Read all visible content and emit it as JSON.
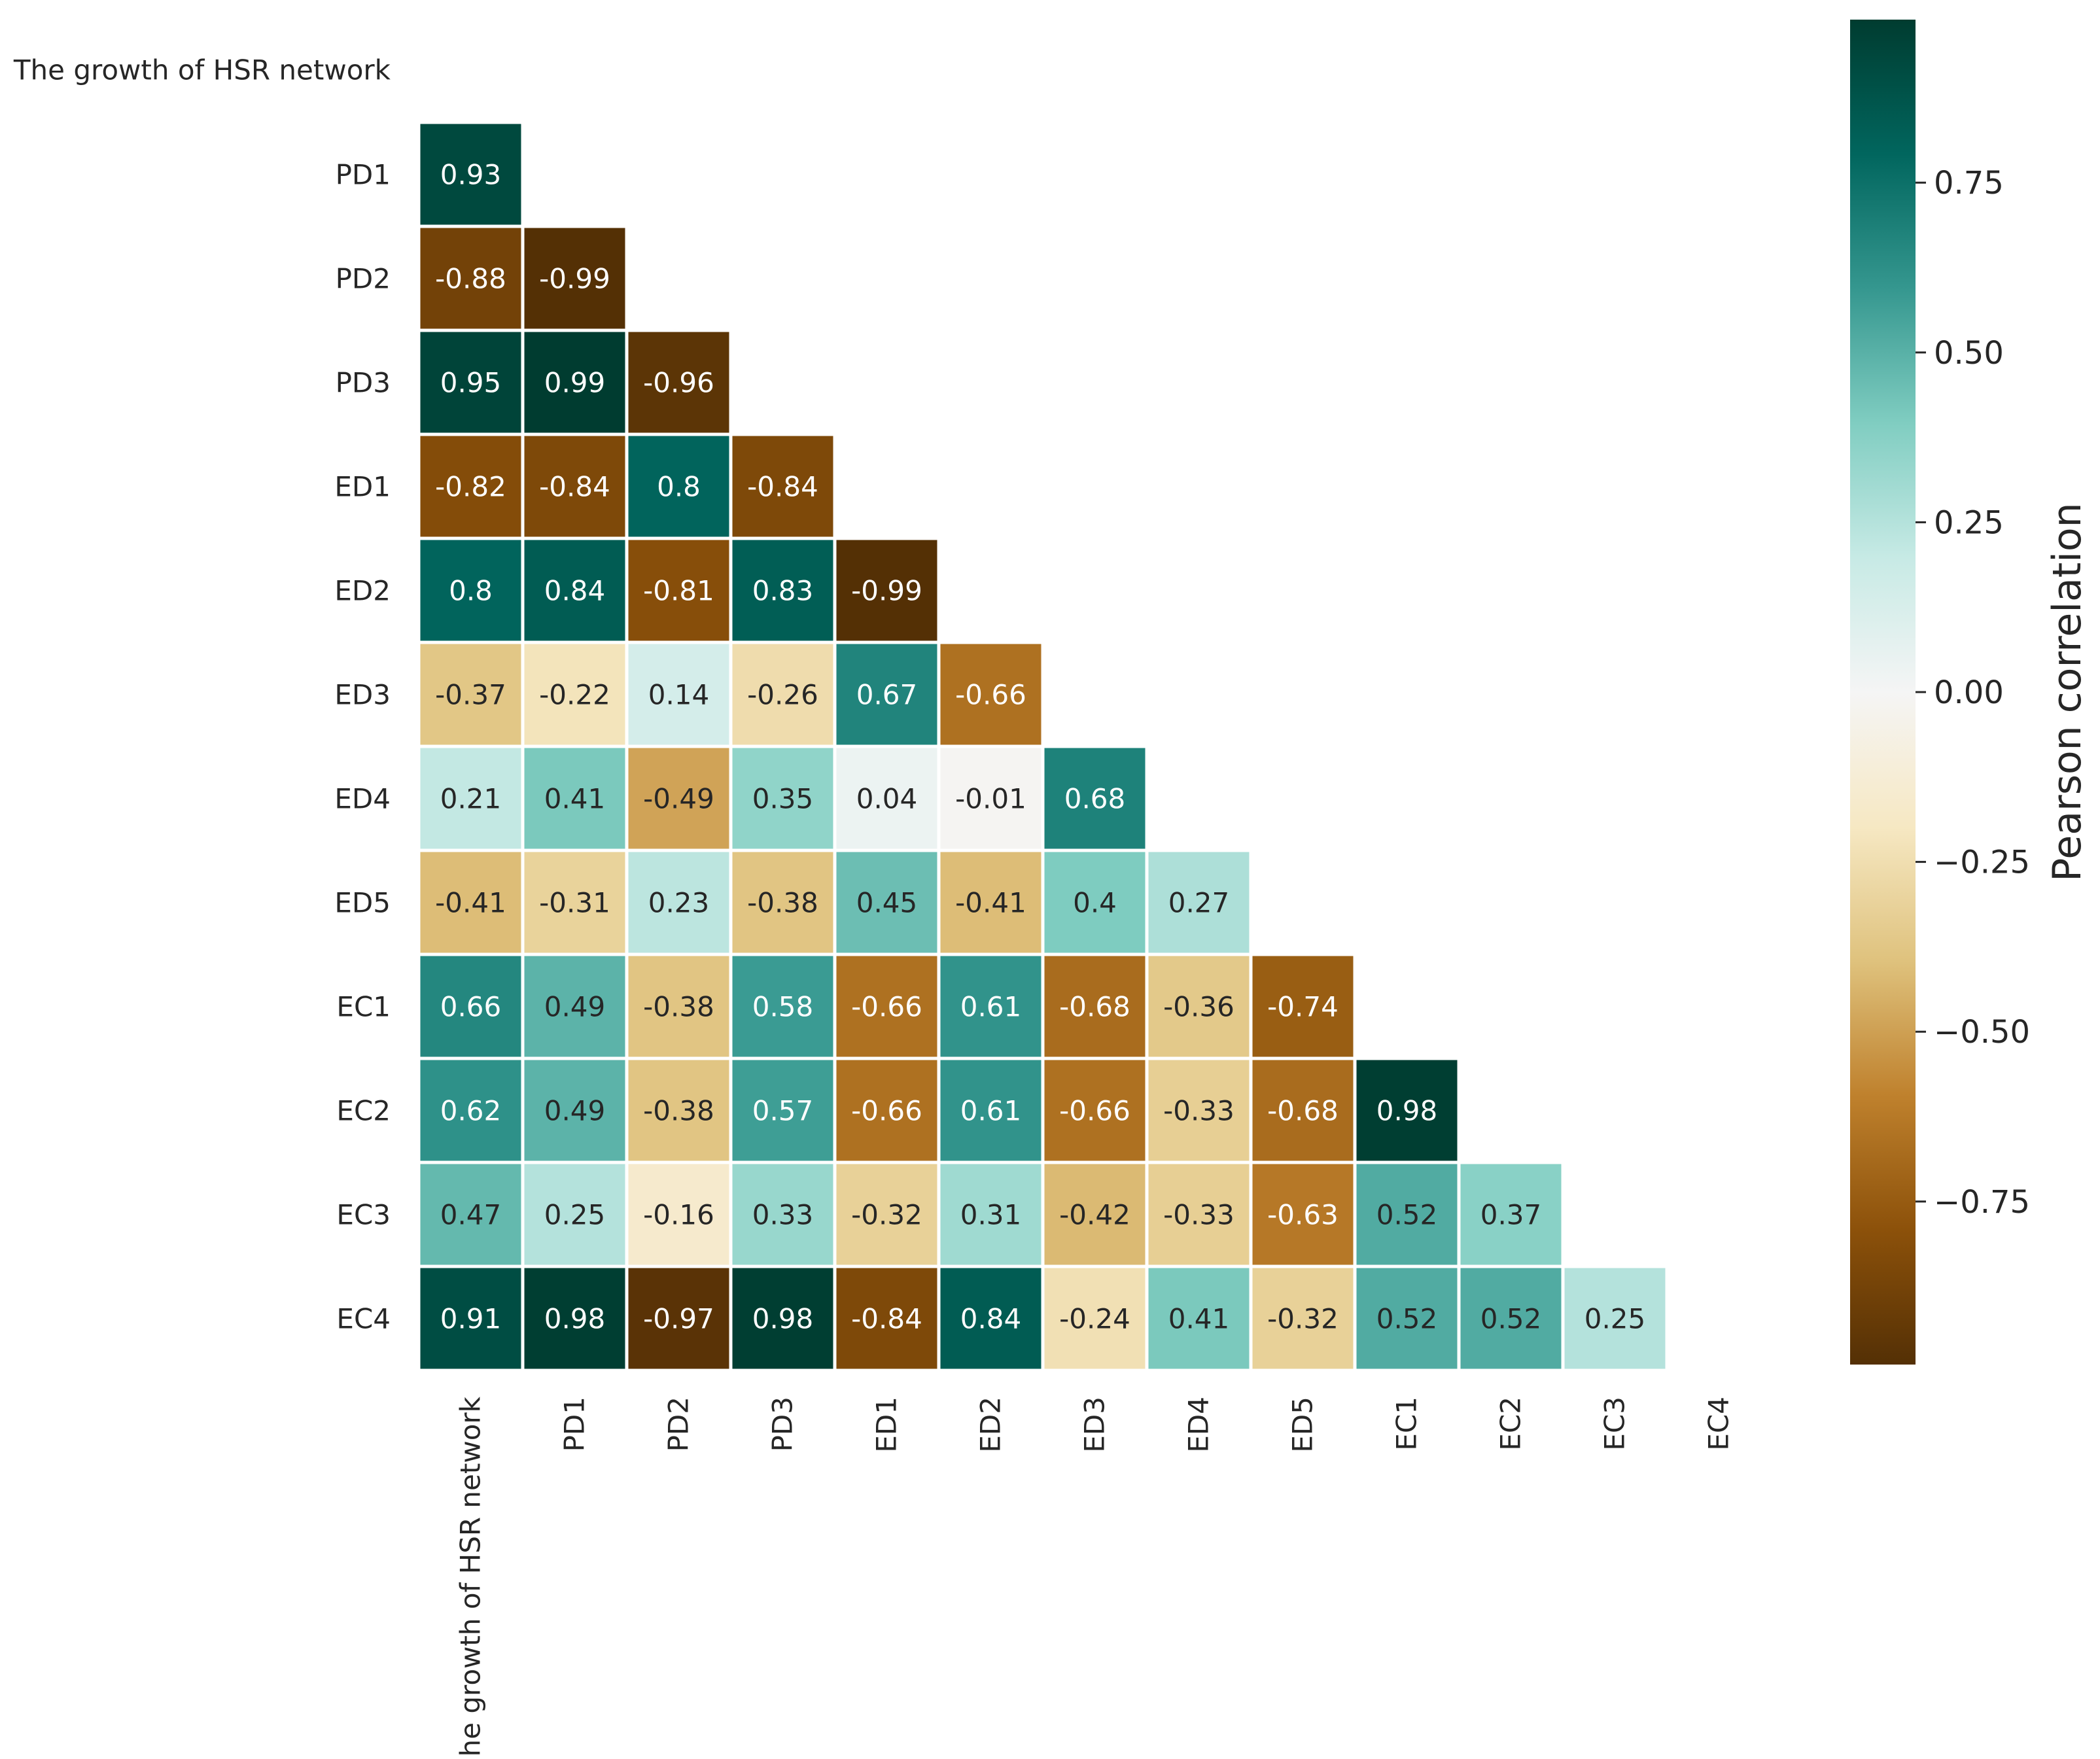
{
  "chart_data": {
    "type": "heatmap",
    "title": "",
    "variables": [
      "The growth of HSR network",
      "PD1",
      "PD2",
      "PD3",
      "ED1",
      "ED2",
      "ED3",
      "ED4",
      "ED5",
      "EC1",
      "EC2",
      "EC3",
      "EC4"
    ],
    "row_labels": [
      "The growth of HSR network",
      "PD1",
      "PD2",
      "PD3",
      "ED1",
      "ED2",
      "ED3",
      "ED4",
      "ED5",
      "EC1",
      "EC2",
      "EC3",
      "EC4"
    ],
    "col_labels": [
      "The growth of HSR network",
      "PD1",
      "PD2",
      "PD3",
      "ED1",
      "ED2",
      "ED3",
      "ED4",
      "ED5",
      "EC1",
      "EC2",
      "EC3",
      "EC4"
    ],
    "mask": "upper-triangle-including-diagonal",
    "rows": [
      {
        "label": "PD1",
        "values": [
          0.93
        ]
      },
      {
        "label": "PD2",
        "values": [
          -0.88,
          -0.99
        ]
      },
      {
        "label": "PD3",
        "values": [
          0.95,
          0.99,
          -0.96
        ]
      },
      {
        "label": "ED1",
        "values": [
          -0.82,
          -0.84,
          0.8,
          -0.84
        ]
      },
      {
        "label": "ED2",
        "values": [
          0.8,
          0.84,
          -0.81,
          0.83,
          -0.99
        ]
      },
      {
        "label": "ED3",
        "values": [
          -0.37,
          -0.22,
          0.14,
          -0.26,
          0.67,
          -0.66
        ]
      },
      {
        "label": "ED4",
        "values": [
          0.21,
          0.41,
          -0.49,
          0.35,
          0.04,
          -0.01,
          0.68
        ]
      },
      {
        "label": "ED5",
        "values": [
          -0.41,
          -0.31,
          0.23,
          -0.38,
          0.45,
          -0.41,
          0.4,
          0.27
        ]
      },
      {
        "label": "EC1",
        "values": [
          0.66,
          0.49,
          -0.38,
          0.58,
          -0.66,
          0.61,
          -0.68,
          -0.36,
          -0.74
        ]
      },
      {
        "label": "EC2",
        "values": [
          0.62,
          0.49,
          -0.38,
          0.57,
          -0.66,
          0.61,
          -0.66,
          -0.33,
          -0.68,
          0.98
        ]
      },
      {
        "label": "EC3",
        "values": [
          0.47,
          0.25,
          -0.16,
          0.33,
          -0.32,
          0.31,
          -0.42,
          -0.33,
          -0.63,
          0.52,
          0.37
        ]
      },
      {
        "label": "EC4",
        "values": [
          0.91,
          0.98,
          -0.97,
          0.98,
          -0.84,
          0.84,
          -0.24,
          0.41,
          -0.32,
          0.52,
          0.52,
          0.25
        ]
      }
    ],
    "colorbar": {
      "label": "Pearson correlation",
      "range": [
        -0.99,
        0.99
      ],
      "ticks": [
        0.75,
        0.5,
        0.25,
        0.0,
        -0.25,
        -0.5,
        -0.75
      ],
      "tick_labels": [
        "0.75",
        "0.50",
        "0.25",
        "0.00",
        "−0.25",
        "−0.50",
        "−0.75"
      ],
      "colormap": "BrBG",
      "stops": [
        "#543005",
        "#8c510a",
        "#bf812d",
        "#dfc27d",
        "#f6e8c3",
        "#f5f5f5",
        "#c7eae5",
        "#80cdc1",
        "#35978f",
        "#01665e",
        "#003c30"
      ]
    },
    "grid": false,
    "legend": "right"
  }
}
